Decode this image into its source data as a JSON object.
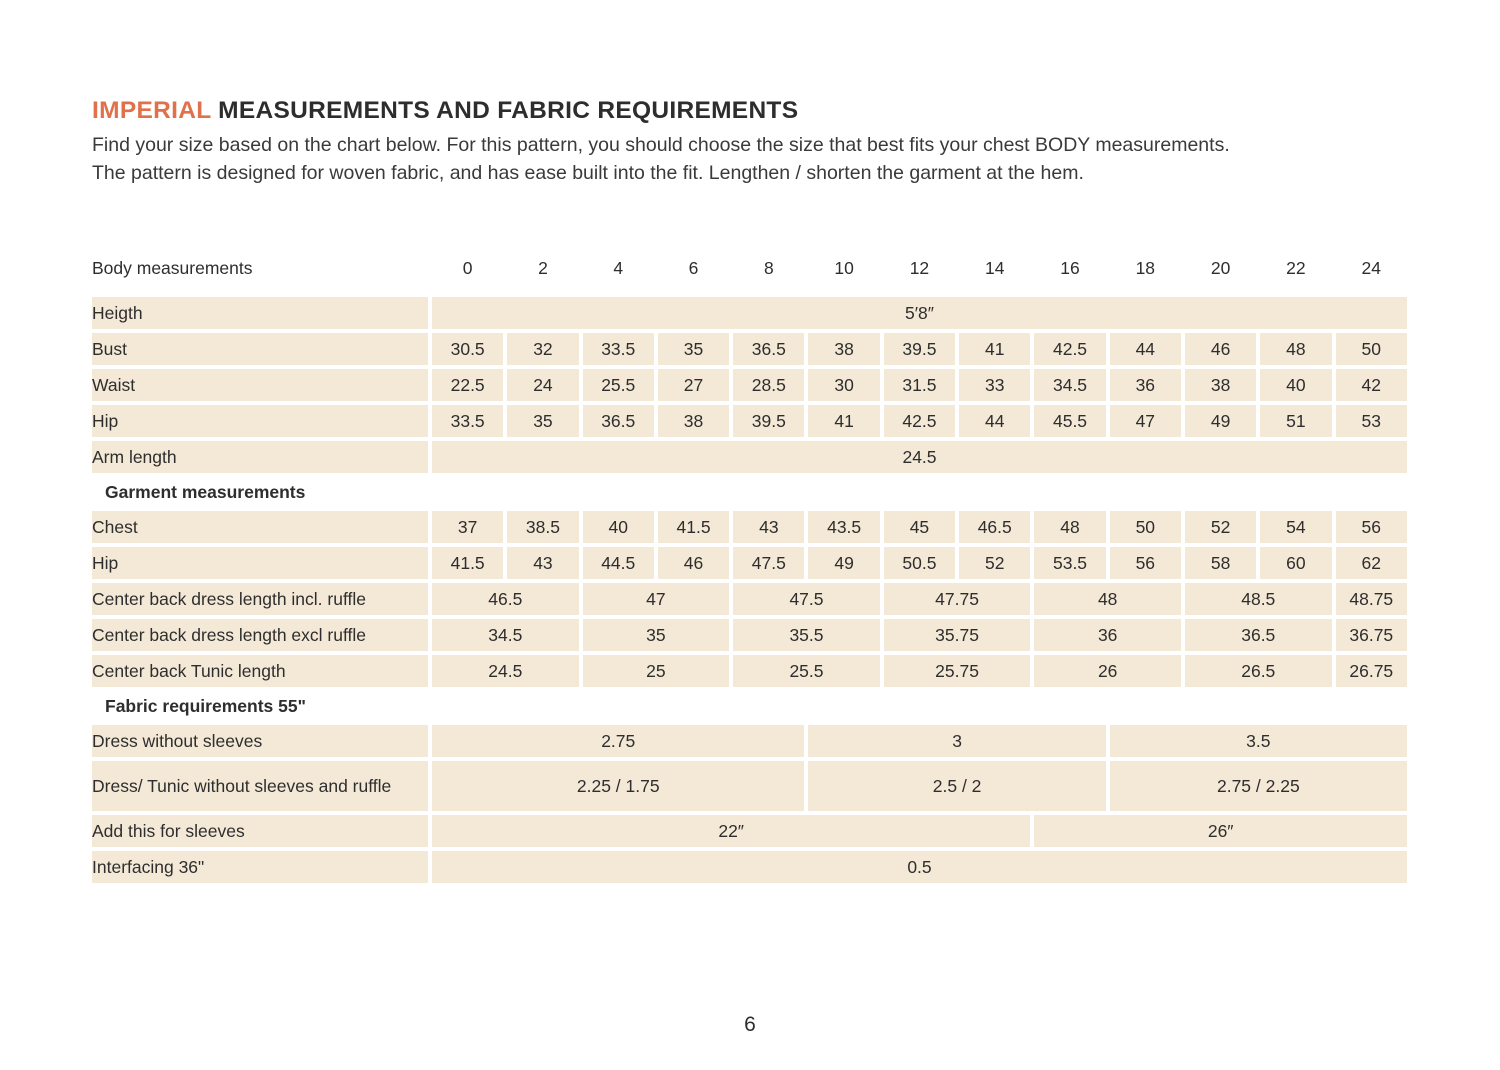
{
  "title": {
    "highlight": "IMPERIAL",
    "rest": " MEASUREMENTS AND FABRIC REQUIREMENTS"
  },
  "intro": {
    "line1": "Find your size based on the chart below. For this pattern, you should choose the size that best fits your chest BODY measurements.",
    "line2": "The pattern is designed for woven fabric, and has ease built into the fit. Lengthen / shorten the garment at the hem."
  },
  "colors": {
    "accent_orange": "#e0714a",
    "cell_beige": "#f4e9d7",
    "text_dark": "#2e2e2e"
  },
  "table": {
    "header_label": "Body measurements",
    "sizes": [
      "0",
      "2",
      "4",
      "6",
      "8",
      "10",
      "12",
      "14",
      "16",
      "18",
      "20",
      "22",
      "24"
    ],
    "rows": [
      {
        "type": "data",
        "label": "Heigth",
        "cells": [
          {
            "span": 13,
            "value": "5′8″"
          }
        ]
      },
      {
        "type": "data",
        "label": "Bust",
        "cells": [
          {
            "span": 1,
            "value": "30.5"
          },
          {
            "span": 1,
            "value": "32"
          },
          {
            "span": 1,
            "value": "33.5"
          },
          {
            "span": 1,
            "value": "35"
          },
          {
            "span": 1,
            "value": "36.5"
          },
          {
            "span": 1,
            "value": "38"
          },
          {
            "span": 1,
            "value": "39.5"
          },
          {
            "span": 1,
            "value": "41"
          },
          {
            "span": 1,
            "value": "42.5"
          },
          {
            "span": 1,
            "value": "44"
          },
          {
            "span": 1,
            "value": "46"
          },
          {
            "span": 1,
            "value": "48"
          },
          {
            "span": 1,
            "value": "50"
          }
        ]
      },
      {
        "type": "data",
        "label": "Waist",
        "cells": [
          {
            "span": 1,
            "value": "22.5"
          },
          {
            "span": 1,
            "value": "24"
          },
          {
            "span": 1,
            "value": "25.5"
          },
          {
            "span": 1,
            "value": "27"
          },
          {
            "span": 1,
            "value": "28.5"
          },
          {
            "span": 1,
            "value": "30"
          },
          {
            "span": 1,
            "value": "31.5"
          },
          {
            "span": 1,
            "value": "33"
          },
          {
            "span": 1,
            "value": "34.5"
          },
          {
            "span": 1,
            "value": "36"
          },
          {
            "span": 1,
            "value": "38"
          },
          {
            "span": 1,
            "value": "40"
          },
          {
            "span": 1,
            "value": "42"
          }
        ]
      },
      {
        "type": "data",
        "label": "Hip",
        "cells": [
          {
            "span": 1,
            "value": "33.5"
          },
          {
            "span": 1,
            "value": "35"
          },
          {
            "span": 1,
            "value": "36.5"
          },
          {
            "span": 1,
            "value": "38"
          },
          {
            "span": 1,
            "value": "39.5"
          },
          {
            "span": 1,
            "value": "41"
          },
          {
            "span": 1,
            "value": "42.5"
          },
          {
            "span": 1,
            "value": "44"
          },
          {
            "span": 1,
            "value": "45.5"
          },
          {
            "span": 1,
            "value": "47"
          },
          {
            "span": 1,
            "value": "49"
          },
          {
            "span": 1,
            "value": "51"
          },
          {
            "span": 1,
            "value": "53"
          }
        ]
      },
      {
        "type": "data",
        "label": "Arm length",
        "cells": [
          {
            "span": 13,
            "value": "24.5"
          }
        ]
      },
      {
        "type": "section",
        "label": "Garment measurements"
      },
      {
        "type": "data",
        "label": "Chest",
        "cells": [
          {
            "span": 1,
            "value": "37"
          },
          {
            "span": 1,
            "value": "38.5"
          },
          {
            "span": 1,
            "value": "40"
          },
          {
            "span": 1,
            "value": "41.5"
          },
          {
            "span": 1,
            "value": "43"
          },
          {
            "span": 1,
            "value": "43.5"
          },
          {
            "span": 1,
            "value": "45"
          },
          {
            "span": 1,
            "value": "46.5"
          },
          {
            "span": 1,
            "value": "48"
          },
          {
            "span": 1,
            "value": "50"
          },
          {
            "span": 1,
            "value": "52"
          },
          {
            "span": 1,
            "value": "54"
          },
          {
            "span": 1,
            "value": "56"
          }
        ]
      },
      {
        "type": "data",
        "label": "Hip",
        "cells": [
          {
            "span": 1,
            "value": "41.5"
          },
          {
            "span": 1,
            "value": "43"
          },
          {
            "span": 1,
            "value": "44.5"
          },
          {
            "span": 1,
            "value": "46"
          },
          {
            "span": 1,
            "value": "47.5"
          },
          {
            "span": 1,
            "value": "49"
          },
          {
            "span": 1,
            "value": "50.5"
          },
          {
            "span": 1,
            "value": "52"
          },
          {
            "span": 1,
            "value": "53.5"
          },
          {
            "span": 1,
            "value": "56"
          },
          {
            "span": 1,
            "value": "58"
          },
          {
            "span": 1,
            "value": "60"
          },
          {
            "span": 1,
            "value": "62"
          }
        ]
      },
      {
        "type": "data",
        "label": "Center back dress length incl. ruffle",
        "cells": [
          {
            "span": 2,
            "value": "46.5"
          },
          {
            "span": 2,
            "value": "47"
          },
          {
            "span": 2,
            "value": "47.5"
          },
          {
            "span": 2,
            "value": "47.75"
          },
          {
            "span": 2,
            "value": "48"
          },
          {
            "span": 2,
            "value": "48.5"
          },
          {
            "span": 1,
            "value": "48.75"
          }
        ]
      },
      {
        "type": "data",
        "label": "Center back dress length excl ruffle",
        "cells": [
          {
            "span": 2,
            "value": "34.5"
          },
          {
            "span": 2,
            "value": "35"
          },
          {
            "span": 2,
            "value": "35.5"
          },
          {
            "span": 2,
            "value": "35.75"
          },
          {
            "span": 2,
            "value": "36"
          },
          {
            "span": 2,
            "value": "36.5"
          },
          {
            "span": 1,
            "value": "36.75"
          }
        ]
      },
      {
        "type": "data",
        "label": "Center back Tunic length",
        "cells": [
          {
            "span": 2,
            "value": "24.5"
          },
          {
            "span": 2,
            "value": "25"
          },
          {
            "span": 2,
            "value": "25.5"
          },
          {
            "span": 2,
            "value": "25.75"
          },
          {
            "span": 2,
            "value": "26"
          },
          {
            "span": 2,
            "value": "26.5"
          },
          {
            "span": 1,
            "value": "26.75"
          }
        ]
      },
      {
        "type": "section",
        "label": "Fabric requirements 55\""
      },
      {
        "type": "data",
        "label": "Dress without sleeves",
        "cells": [
          {
            "span": 5,
            "value": "2.75"
          },
          {
            "span": 4,
            "value": "3"
          },
          {
            "span": 4,
            "value": "3.5"
          }
        ]
      },
      {
        "type": "data",
        "tall": true,
        "label": "Dress/ Tunic without sleeves and ruffle",
        "cells": [
          {
            "span": 5,
            "value": "2.25 / 1.75"
          },
          {
            "span": 4,
            "value": "2.5 / 2"
          },
          {
            "span": 4,
            "value": "2.75 / 2.25"
          }
        ]
      },
      {
        "type": "data",
        "label": "Add this for sleeves",
        "cells": [
          {
            "span": 8,
            "value": "22″"
          },
          {
            "span": 5,
            "value": "26″"
          }
        ]
      },
      {
        "type": "data",
        "label": "Interfacing 36\"",
        "cells": [
          {
            "span": 13,
            "value": "0.5"
          }
        ]
      }
    ]
  },
  "footer": {
    "page_number": "6"
  }
}
